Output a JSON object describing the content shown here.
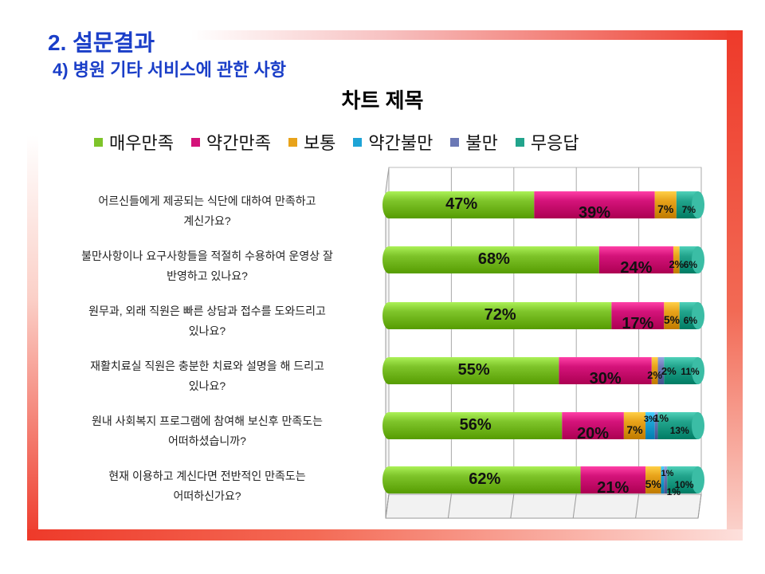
{
  "header": {
    "title": "2. 설문결과",
    "subtitle": "4) 병원 기타 서비스에 관한 사항"
  },
  "chart_data": {
    "type": "bar",
    "stacked": true,
    "orientation": "horizontal",
    "title": "차트 제목",
    "legend_position": "top",
    "xlim": [
      0,
      100
    ],
    "categories": [
      "어르신들에게 제공되는 식단에 대하여 만족하고 계신가요?",
      "불만사항이나 요구사항들을 적절히 수용하여 운영상 잘 반영하고 있나요?",
      "원무과, 외래 직원은 빠른 상담과 접수를 도와드리고 있나요?",
      "재활치료실 직원은 충분한 치료와 설명을 해 드리고 있나요?",
      "원내 사회복지 프로그램에 참여해 보신후 만족도는 어떠하셨습니까?",
      "현재 이용하고 계신다면 전반적인 만족도는 어떠하신가요?"
    ],
    "question_lines": [
      [
        "어르신들에게 제공되는 식단에 대하여 만족하고",
        "계신가요?"
      ],
      [
        "불만사항이나 요구사항들을 적절히 수용하여 운영상 잘",
        "반영하고 있나요?"
      ],
      [
        "원무과, 외래 직원은 빠른 상담과 접수를 도와드리고",
        "있나요?"
      ],
      [
        "재활치료실 직원은 충분한 치료와 설명을 해 드리고",
        "있나요?"
      ],
      [
        "원내 사회복지 프로그램에 참여해 보신후 만족도는",
        "어떠하셨습니까?"
      ],
      [
        "현재 이용하고 계신다면 전반적인 만족도는",
        "어떠하신가요?"
      ]
    ],
    "series": [
      {
        "name": "매우만족",
        "color": "#7ec42a",
        "values": [
          47,
          68,
          72,
          55,
          56,
          62
        ],
        "labels": [
          "47%",
          "68%",
          "72%",
          "55%",
          "56%",
          "62%"
        ]
      },
      {
        "name": "약간만족",
        "color": "#d4137a",
        "values": [
          39,
          24,
          17,
          30,
          20,
          21
        ],
        "labels": [
          "39%",
          "24%",
          "17%",
          "30%",
          "20%",
          "21%"
        ]
      },
      {
        "name": "보통",
        "color": "#e8a31a",
        "values": [
          7,
          2,
          5,
          2,
          7,
          5
        ],
        "labels": [
          "7%",
          "2%",
          "5%",
          "2%",
          "7%",
          "5%"
        ]
      },
      {
        "name": "약간불만",
        "color": "#1ea4d6",
        "values": [
          0,
          0,
          0,
          0,
          3,
          1
        ],
        "labels": [
          "",
          "",
          "",
          "",
          "3%",
          "1%"
        ]
      },
      {
        "name": "불만",
        "color": "#6b78b5",
        "values": [
          0,
          0,
          0,
          2,
          1,
          1
        ],
        "labels": [
          "",
          "",
          "",
          "2%",
          "1%",
          "1%"
        ]
      },
      {
        "name": "무응답",
        "color": "#22a48c",
        "values": [
          7,
          6,
          6,
          11,
          13,
          10
        ],
        "labels": [
          "7%",
          "6%",
          "6%",
          "11%",
          "13%",
          "10%"
        ]
      }
    ]
  }
}
